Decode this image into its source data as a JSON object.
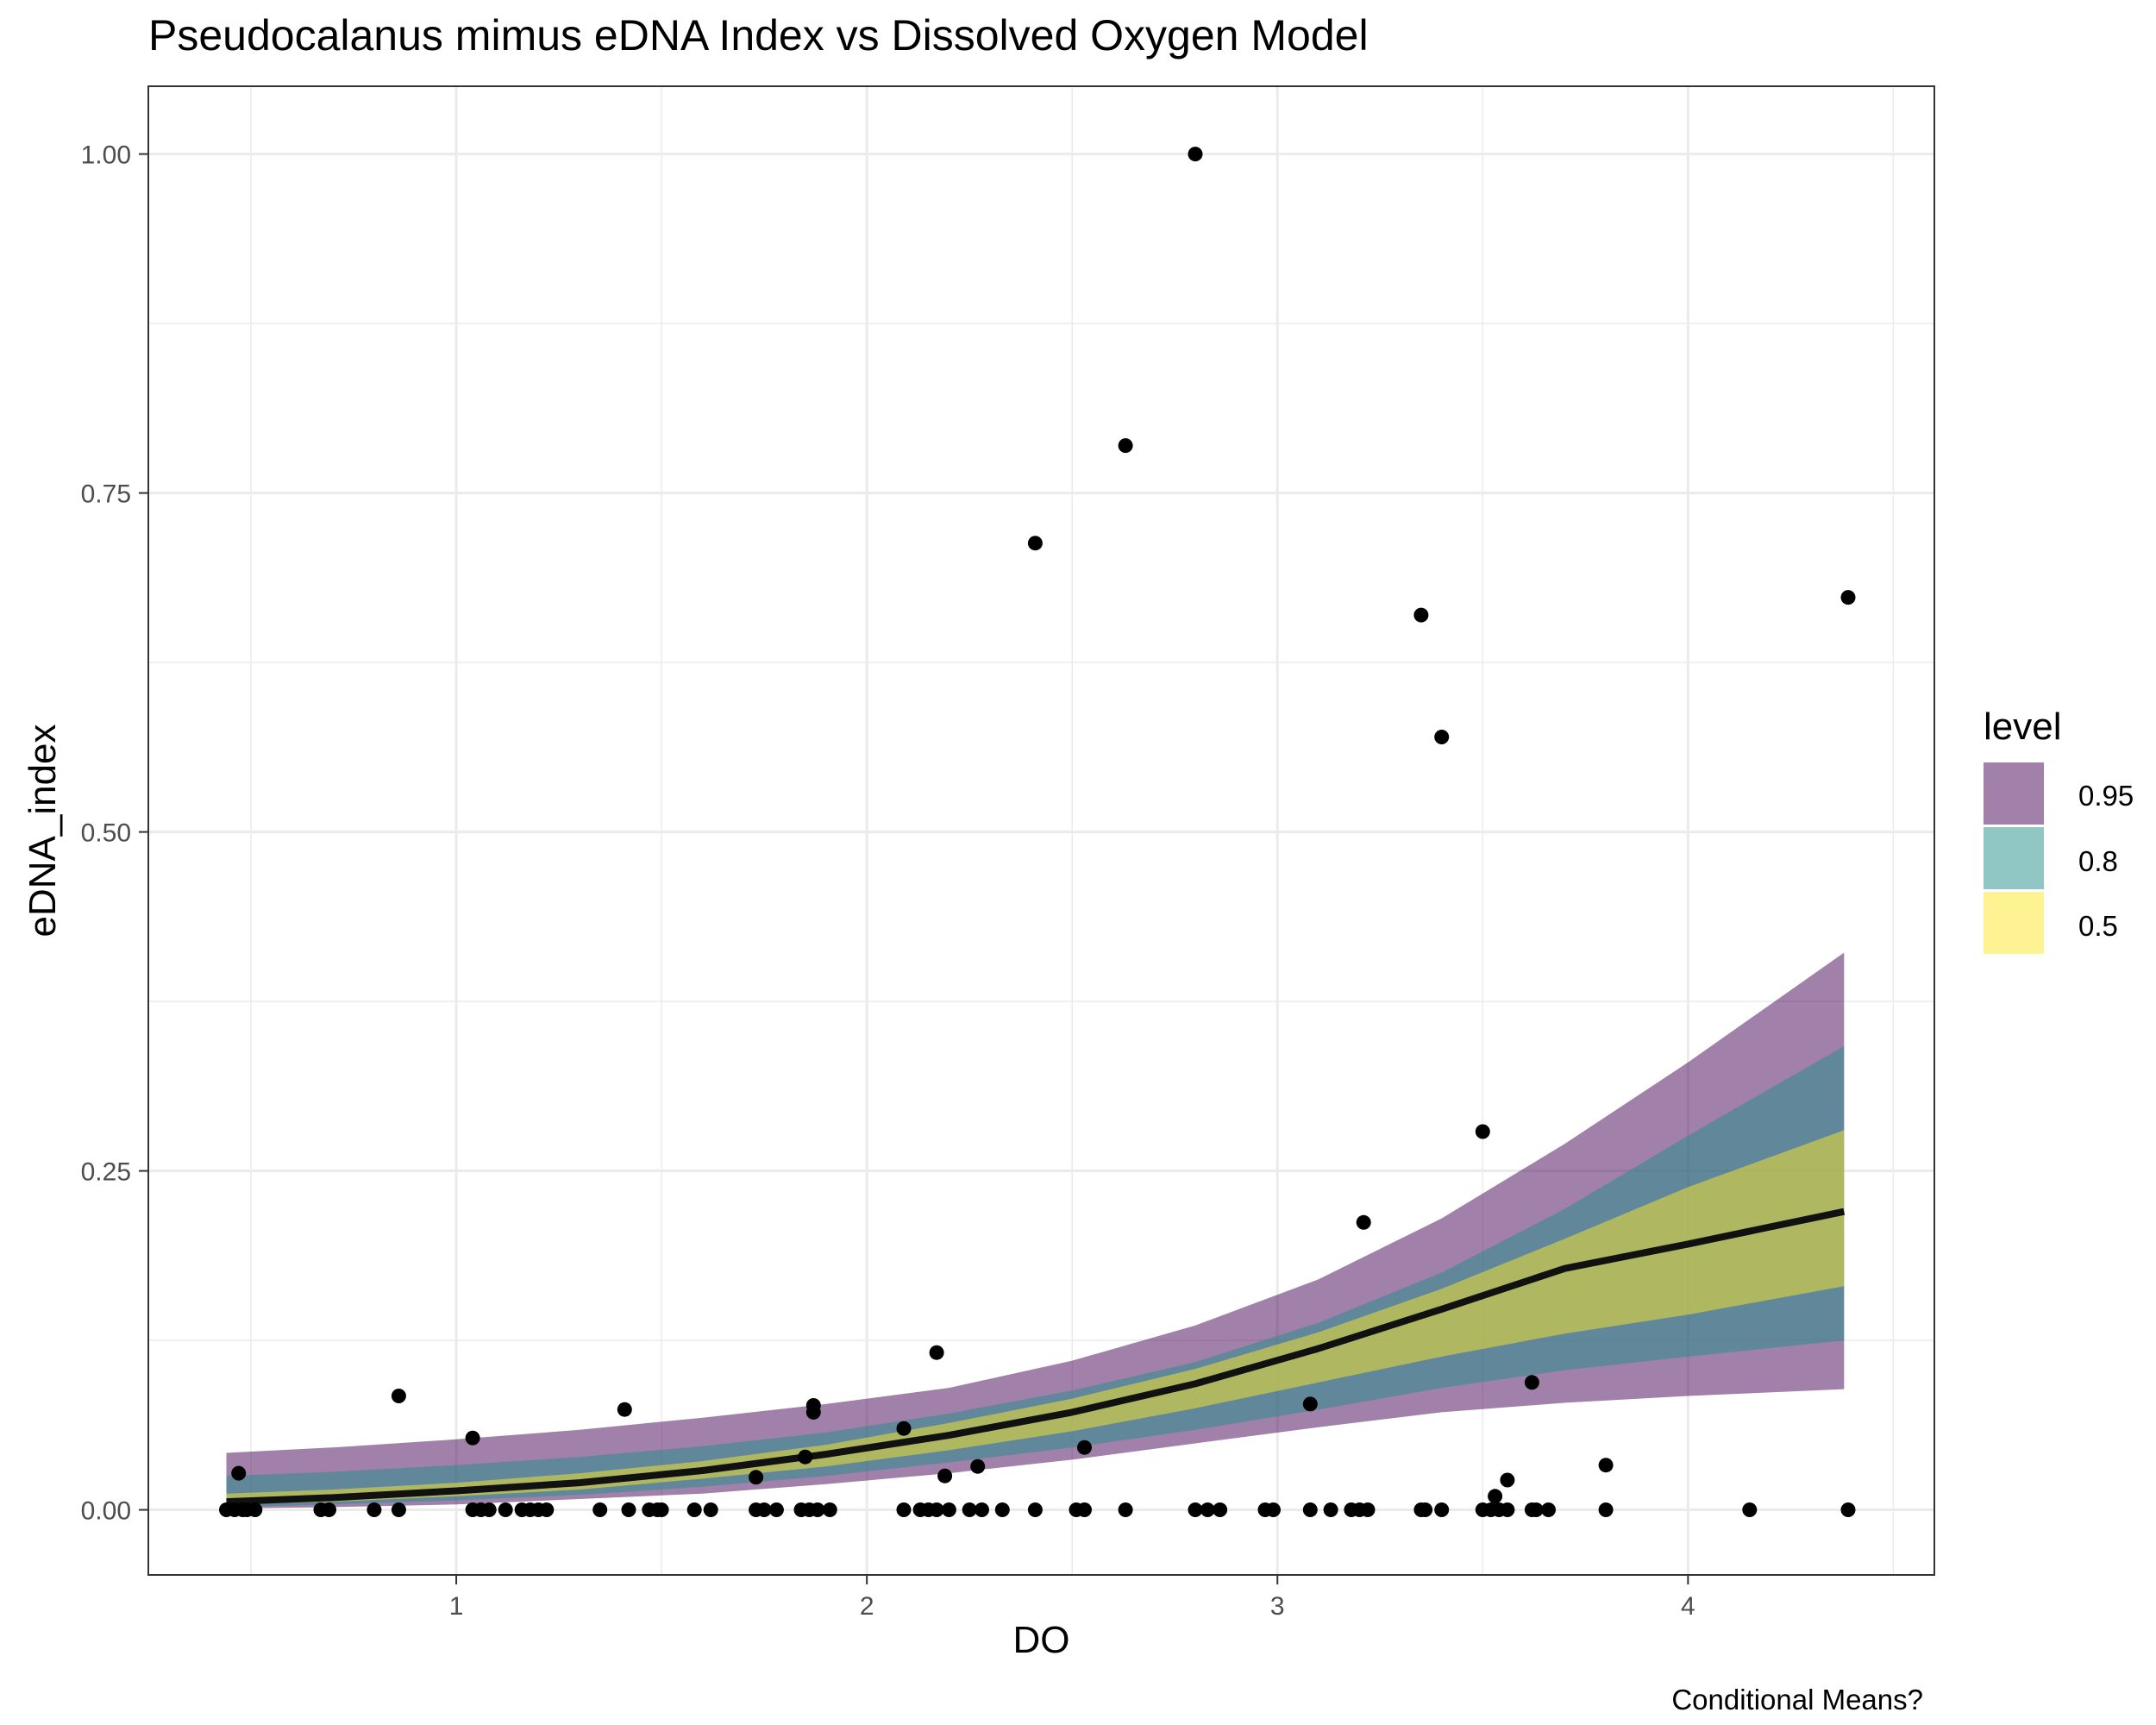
{
  "chart_data": {
    "type": "scatter",
    "title": "Pseudocalanus mimus eDNA Index vs Dissolved Oxygen Model",
    "caption": "Conditional Means?",
    "xlabel": "DO",
    "ylabel": "eDNA_index",
    "xlim": [
      0.25,
      4.6
    ],
    "ylim": [
      -0.048,
      1.05
    ],
    "x_ticks": [
      1,
      2,
      3,
      4
    ],
    "y_ticks": [
      0.0,
      0.25,
      0.5,
      0.75,
      1.0
    ],
    "y_tick_labels": [
      "0.00",
      "0.25",
      "0.50",
      "0.75",
      "1.00"
    ],
    "grid": true,
    "legend": {
      "title": "level",
      "position": "right",
      "entries": [
        {
          "label": "0.95",
          "color": "#440154"
        },
        {
          "label": "0.8",
          "color": "#21908C"
        },
        {
          "label": "0.5",
          "color": "#FDE725"
        }
      ]
    },
    "colors": {
      "band_95": "#440154",
      "band_80": "#21908C",
      "band_50": "#FDE725",
      "mean_line": "#111111",
      "points": "#000000",
      "grid": "#ebebeb",
      "panel_border": "#333333"
    },
    "model": {
      "x": [
        0.44,
        0.7,
        1.0,
        1.3,
        1.6,
        1.9,
        2.2,
        2.5,
        2.8,
        3.1,
        3.4,
        3.7,
        4.0,
        4.38
      ],
      "mean": [
        0.006,
        0.009,
        0.014,
        0.02,
        0.029,
        0.041,
        0.055,
        0.072,
        0.093,
        0.119,
        0.148,
        0.178,
        0.196,
        0.22
      ],
      "bands": {
        "0.95": {
          "lower": [
            0.001,
            0.002,
            0.004,
            0.008,
            0.012,
            0.019,
            0.027,
            0.037,
            0.049,
            0.061,
            0.072,
            0.079,
            0.084,
            0.089
          ],
          "upper": [
            0.042,
            0.046,
            0.052,
            0.059,
            0.068,
            0.078,
            0.09,
            0.11,
            0.136,
            0.17,
            0.215,
            0.27,
            0.33,
            0.411
          ]
        },
        "0.8": {
          "lower": [
            0.002,
            0.004,
            0.007,
            0.011,
            0.017,
            0.025,
            0.035,
            0.046,
            0.059,
            0.074,
            0.09,
            0.103,
            0.113,
            0.125
          ],
          "upper": [
            0.025,
            0.028,
            0.033,
            0.039,
            0.047,
            0.057,
            0.071,
            0.088,
            0.109,
            0.138,
            0.175,
            0.222,
            0.276,
            0.342
          ]
        },
        "0.5": {
          "lower": [
            0.004,
            0.006,
            0.01,
            0.015,
            0.023,
            0.032,
            0.044,
            0.058,
            0.075,
            0.094,
            0.113,
            0.13,
            0.144,
            0.165
          ],
          "upper": [
            0.012,
            0.015,
            0.02,
            0.027,
            0.036,
            0.048,
            0.064,
            0.082,
            0.104,
            0.131,
            0.163,
            0.2,
            0.238,
            0.28
          ]
        }
      }
    },
    "points": [
      [
        0.44,
        0.0
      ],
      [
        0.46,
        0.0
      ],
      [
        0.47,
        0.027
      ],
      [
        0.48,
        0.0
      ],
      [
        0.49,
        0.0
      ],
      [
        0.51,
        0.0
      ],
      [
        0.67,
        0.0
      ],
      [
        0.69,
        0.0
      ],
      [
        0.8,
        0.0
      ],
      [
        0.86,
        0.084
      ],
      [
        0.86,
        0.0
      ],
      [
        1.04,
        0.053
      ],
      [
        1.04,
        0.0
      ],
      [
        1.06,
        0.0
      ],
      [
        1.08,
        0.0
      ],
      [
        1.12,
        0.0
      ],
      [
        1.16,
        0.0
      ],
      [
        1.18,
        0.0
      ],
      [
        1.2,
        0.0
      ],
      [
        1.22,
        0.0
      ],
      [
        1.35,
        0.0
      ],
      [
        1.41,
        0.074
      ],
      [
        1.42,
        0.0
      ],
      [
        1.47,
        0.0
      ],
      [
        1.49,
        0.0
      ],
      [
        1.5,
        0.0
      ],
      [
        1.58,
        0.0
      ],
      [
        1.62,
        0.0
      ],
      [
        1.73,
        0.024
      ],
      [
        1.73,
        0.0
      ],
      [
        1.75,
        0.0
      ],
      [
        1.78,
        0.0
      ],
      [
        1.84,
        0.0
      ],
      [
        1.85,
        0.039
      ],
      [
        1.86,
        0.0
      ],
      [
        1.87,
        0.077
      ],
      [
        1.87,
        0.072
      ],
      [
        1.88,
        0.0
      ],
      [
        1.91,
        0.0
      ],
      [
        2.09,
        0.06
      ],
      [
        2.09,
        0.0
      ],
      [
        2.13,
        0.0
      ],
      [
        2.15,
        0.0
      ],
      [
        2.17,
        0.116
      ],
      [
        2.17,
        0.0
      ],
      [
        2.19,
        0.025
      ],
      [
        2.2,
        0.0
      ],
      [
        2.25,
        0.0
      ],
      [
        2.27,
        0.032
      ],
      [
        2.28,
        0.0
      ],
      [
        2.33,
        0.0
      ],
      [
        2.41,
        0.713
      ],
      [
        2.41,
        0.0
      ],
      [
        2.51,
        0.0
      ],
      [
        2.53,
        0.046
      ],
      [
        2.53,
        0.0
      ],
      [
        2.63,
        0.785
      ],
      [
        2.63,
        0.0
      ],
      [
        2.8,
        1.0
      ],
      [
        2.8,
        0.0
      ],
      [
        2.83,
        0.0
      ],
      [
        2.86,
        0.0
      ],
      [
        2.97,
        0.0
      ],
      [
        2.99,
        0.0
      ],
      [
        3.08,
        0.078
      ],
      [
        3.08,
        0.0
      ],
      [
        3.13,
        0.0
      ],
      [
        3.18,
        0.0
      ],
      [
        3.2,
        0.0
      ],
      [
        3.21,
        0.212
      ],
      [
        3.22,
        0.0
      ],
      [
        3.35,
        0.66
      ],
      [
        3.35,
        0.0
      ],
      [
        3.36,
        0.0
      ],
      [
        3.4,
        0.57
      ],
      [
        3.4,
        0.0
      ],
      [
        3.5,
        0.279
      ],
      [
        3.5,
        0.0
      ],
      [
        3.52,
        0.0
      ],
      [
        3.53,
        0.01
      ],
      [
        3.54,
        0.0
      ],
      [
        3.56,
        0.022
      ],
      [
        3.56,
        0.0
      ],
      [
        3.62,
        0.094
      ],
      [
        3.62,
        0.0
      ],
      [
        3.63,
        0.0
      ],
      [
        3.66,
        0.0
      ],
      [
        3.8,
        0.033
      ],
      [
        3.8,
        0.0
      ],
      [
        4.15,
        0.0
      ],
      [
        4.39,
        0.673
      ],
      [
        4.39,
        0.0
      ]
    ]
  }
}
